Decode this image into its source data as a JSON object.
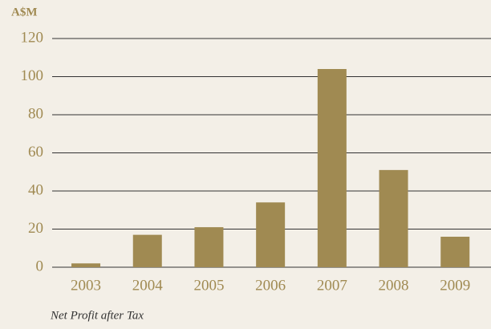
{
  "chart_data": {
    "type": "bar",
    "y_axis_label": "A$M",
    "caption": "Net Profit after Tax",
    "categories": [
      "2003",
      "2004",
      "2005",
      "2006",
      "2007",
      "2008",
      "2009"
    ],
    "values": [
      2,
      17,
      21,
      34,
      104,
      51,
      16
    ],
    "color": "#a08a52",
    "ylim": [
      0,
      120
    ],
    "yticks": [
      0,
      20,
      40,
      60,
      80,
      100,
      120
    ],
    "grid": true
  }
}
